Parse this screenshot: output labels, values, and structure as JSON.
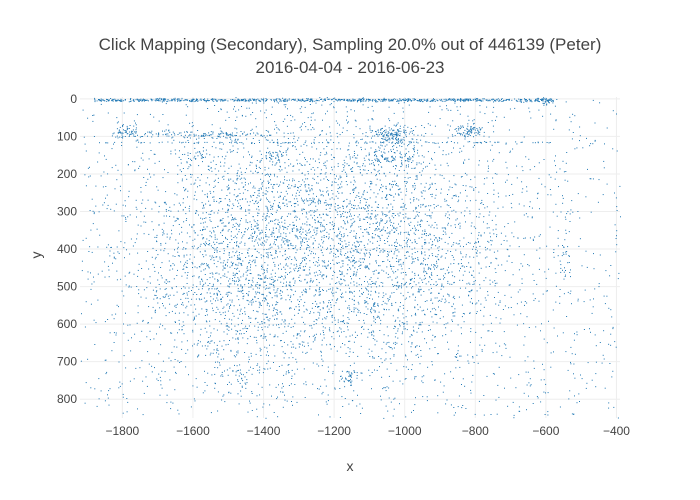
{
  "chart_data": {
    "type": "scatter",
    "title": "Click Mapping (Secondary), Sampling 20.0% out of 446139 (Peter)",
    "subtitle": "2016-04-04 - 2016-06-23",
    "xlabel": "x",
    "ylabel": "y",
    "xlim": [
      -1920,
      -390
    ],
    "ylim": [
      850,
      -5
    ],
    "y_reversed": true,
    "grid": true,
    "legend": "none",
    "marker_color": "#1f77b4",
    "xticks": [
      -1800,
      -1600,
      -1400,
      -1200,
      -1000,
      -800,
      -600,
      -400
    ],
    "xtick_labels": [
      "−1800",
      "−1600",
      "−1400",
      "−1200",
      "−1000",
      "−800",
      "−600",
      "−400"
    ],
    "yticks": [
      0,
      100,
      200,
      300,
      400,
      500,
      600,
      700,
      800
    ],
    "ytick_labels": [
      "0",
      "100",
      "200",
      "300",
      "400",
      "500",
      "600",
      "700",
      "800"
    ],
    "density_clusters": [
      {
        "x": -1250,
        "y": 360,
        "sx": 260,
        "sy": 160,
        "weight": 0.45
      },
      {
        "x": -1500,
        "y": 520,
        "sx": 120,
        "sy": 150,
        "weight": 0.1
      },
      {
        "x": -1000,
        "y": 480,
        "sx": 180,
        "sy": 170,
        "weight": 0.1
      },
      {
        "x": -1040,
        "y": 95,
        "sx": 30,
        "sy": 12,
        "weight": 0.02
      },
      {
        "x": -1040,
        "y": 160,
        "sx": 45,
        "sy": 15,
        "weight": 0.015
      },
      {
        "x": -820,
        "y": 85,
        "sx": 25,
        "sy": 10,
        "weight": 0.012
      },
      {
        "x": -1790,
        "y": 85,
        "sx": 15,
        "sy": 10,
        "weight": 0.008
      },
      {
        "x": -1380,
        "y": 150,
        "sx": 20,
        "sy": 10,
        "weight": 0.004
      },
      {
        "x": -1590,
        "y": 150,
        "sx": 25,
        "sy": 8,
        "weight": 0.004
      },
      {
        "x": -1155,
        "y": 740,
        "sx": 15,
        "sy": 10,
        "weight": 0.005
      },
      {
        "x": -1460,
        "y": 740,
        "sx": 15,
        "sy": 15,
        "weight": 0.003
      },
      {
        "x": -600,
        "y": 5,
        "sx": 15,
        "sy": 6,
        "weight": 0.006
      },
      {
        "x": -550,
        "y": 420,
        "sx": 12,
        "sy": 80,
        "weight": 0.005
      },
      {
        "x": -1600,
        "y": 95,
        "sx": 120,
        "sy": 6,
        "weight": 0.02
      }
    ],
    "band_y_values": [
      0,
      2,
      4,
      115
    ]
  }
}
